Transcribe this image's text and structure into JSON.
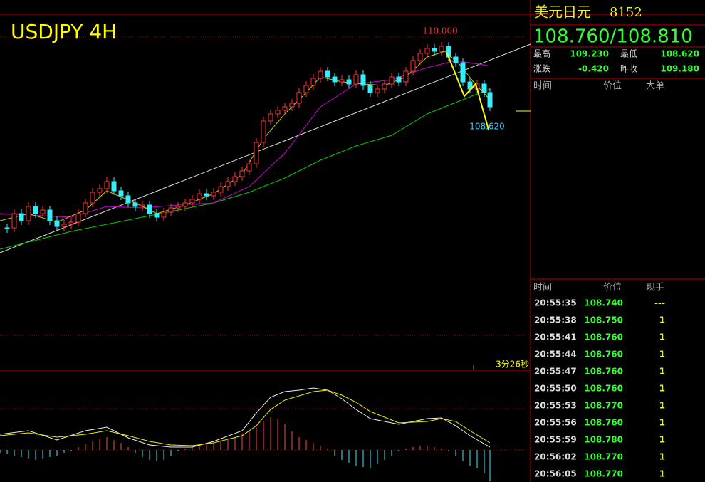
{
  "chart": {
    "title": "USDJPY 4H",
    "high_label": "110.000",
    "low_label": "108.620",
    "countdown": "3分26秒"
  },
  "quote": {
    "name": "美元日元",
    "code": "8152",
    "price": "108.760/108.810",
    "rows": [
      [
        "最高",
        "109.230",
        "最低",
        "108.620"
      ],
      [
        "涨跌",
        "-0.420",
        "昨收",
        "109.180"
      ]
    ]
  },
  "depth_header": [
    "时间",
    "价位",
    "大单"
  ],
  "ticks_header": [
    "时间",
    "价位",
    "现手"
  ],
  "ticks": [
    [
      "20:55:35",
      "108.740",
      "---"
    ],
    [
      "20:55:38",
      "108.750",
      "1"
    ],
    [
      "20:55:41",
      "108.760",
      "1"
    ],
    [
      "20:55:44",
      "108.760",
      "1"
    ],
    [
      "20:55:47",
      "108.760",
      "1"
    ],
    [
      "20:55:50",
      "108.760",
      "1"
    ],
    [
      "20:55:53",
      "108.770",
      "1"
    ],
    [
      "20:55:56",
      "108.760",
      "1"
    ],
    [
      "20:55:59",
      "108.780",
      "1"
    ],
    [
      "20:56:02",
      "108.770",
      "1"
    ],
    [
      "20:56:05",
      "108.770",
      "1"
    ]
  ]
}
